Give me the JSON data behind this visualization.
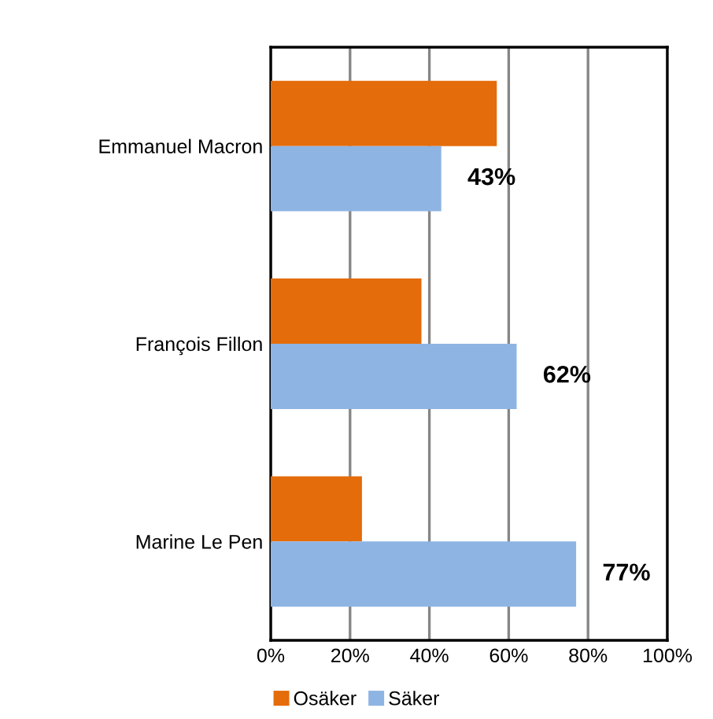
{
  "chart_data": {
    "type": "bar",
    "orientation": "horizontal",
    "categories": [
      "Emmanuel Macron",
      "François Fillon",
      "Marine Le Pen"
    ],
    "series": [
      {
        "name": "Osäker",
        "color": "#e46c0a",
        "values": [
          57,
          38,
          23
        ]
      },
      {
        "name": "Säker",
        "color": "#8eb4e3",
        "values": [
          43,
          62,
          77
        ],
        "value_labels": [
          "43%",
          "62%",
          "77%"
        ]
      }
    ],
    "xlim": [
      0,
      100
    ],
    "xticks": [
      {
        "value": 0,
        "label": "0%"
      },
      {
        "value": 20,
        "label": "20%"
      },
      {
        "value": 40,
        "label": "40%"
      },
      {
        "value": 60,
        "label": "60%"
      },
      {
        "value": 80,
        "label": "80%"
      },
      {
        "value": 100,
        "label": "100%"
      }
    ],
    "grid": "x",
    "legend": "bottom"
  }
}
